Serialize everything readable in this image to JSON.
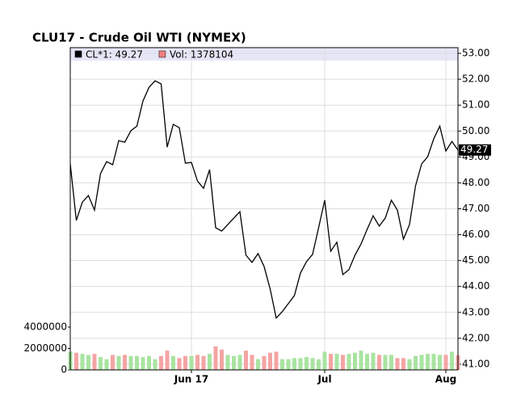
{
  "chart_data": {
    "type": "line",
    "title": "CLU17 - Crude Oil WTI (NYMEX)",
    "categories": [
      null,
      null,
      null,
      null,
      null,
      null,
      null,
      null,
      null,
      null,
      null,
      null,
      null,
      null,
      null,
      null,
      null,
      null,
      null,
      null,
      "Jun 17",
      null,
      null,
      null,
      null,
      null,
      null,
      null,
      null,
      null,
      null,
      null,
      null,
      null,
      null,
      null,
      null,
      null,
      null,
      null,
      null,
      null,
      "Jul",
      null,
      null,
      null,
      null,
      null,
      null,
      null,
      null,
      null,
      null,
      null,
      null,
      null,
      null,
      null,
      null,
      null,
      null,
      null,
      "Aug",
      null,
      null
    ],
    "series": [
      {
        "name": "CL*1: 49.27",
        "color": "#000000",
        "values": [
          48.73,
          46.55,
          47.26,
          47.51,
          46.95,
          48.36,
          48.82,
          48.7,
          49.63,
          49.57,
          50.01,
          50.19,
          51.16,
          51.69,
          51.94,
          51.82,
          49.38,
          50.26,
          50.13,
          48.76,
          48.79,
          48.07,
          47.79,
          48.51,
          46.27,
          46.14,
          46.39,
          46.64,
          46.89,
          45.21,
          44.93,
          45.27,
          44.77,
          43.9,
          42.78,
          43.03,
          43.34,
          43.65,
          44.52,
          44.96,
          45.24,
          46.27,
          47.33,
          45.36,
          45.71,
          44.46,
          44.65,
          45.21,
          45.64,
          46.2,
          46.73,
          46.33,
          46.64,
          47.33,
          46.95,
          45.83,
          46.39,
          47.89,
          48.73,
          49.01,
          49.7,
          50.19,
          49.23,
          49.6,
          49.27
        ]
      },
      {
        "name": "Vol: 1378104",
        "type": "bar",
        "axis": "y2",
        "color": "#f08080",
        "up_color": "#a8e4a0",
        "down_color": "#f4a4a4",
        "values": [
          1700000,
          1600000,
          1500000,
          1400000,
          1500000,
          1200000,
          1000000,
          1400000,
          1300000,
          1400000,
          1300000,
          1300000,
          1200000,
          1300000,
          1000000,
          1300000,
          1800000,
          1300000,
          1100000,
          1300000,
          1300000,
          1400000,
          1300000,
          1500000,
          2200000,
          1900000,
          1400000,
          1300000,
          1400000,
          1800000,
          1400000,
          1000000,
          1300000,
          1600000,
          1700000,
          1000000,
          1000000,
          1100000,
          1100000,
          1200000,
          1100000,
          1000000,
          1700000,
          1500000,
          1500000,
          1400000,
          1500000,
          1600000,
          1800000,
          1500000,
          1600000,
          1400000,
          1400000,
          1400000,
          1100000,
          1100000,
          1000000,
          1300000,
          1400000,
          1500000,
          1500000,
          1400000,
          1400000,
          1700000,
          1378104
        ]
      }
    ],
    "last_label": {
      "value": 49.27,
      "label": "49.27"
    },
    "ylim": [
      40.78,
      53.22
    ],
    "yticks": [
      {
        "value": 41,
        "label": "41.00"
      },
      {
        "value": 42,
        "label": "42.00"
      },
      {
        "value": 43,
        "label": "43.00"
      },
      {
        "value": 44,
        "label": "44.00"
      },
      {
        "value": 45,
        "label": "45.00"
      },
      {
        "value": 46,
        "label": "46.00"
      },
      {
        "value": 47,
        "label": "47.00"
      },
      {
        "value": 48,
        "label": "48.00"
      },
      {
        "value": 49,
        "label": "49.00"
      },
      {
        "value": 50,
        "label": "50.00"
      },
      {
        "value": 51,
        "label": "51.00"
      },
      {
        "value": 52,
        "label": "52.00"
      },
      {
        "value": 53,
        "label": "53.00"
      }
    ],
    "y2lim": [
      0,
      30100000
    ],
    "y2ticks": [
      0,
      2000000,
      4000000
    ],
    "grid": true
  }
}
